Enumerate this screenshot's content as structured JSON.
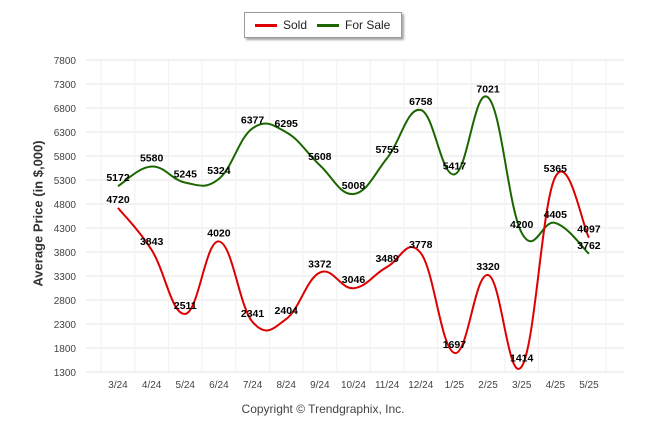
{
  "chart_data": {
    "type": "line",
    "categories": [
      "3/24",
      "4/24",
      "5/24",
      "6/24",
      "7/24",
      "8/24",
      "9/24",
      "10/24",
      "11/24",
      "12/24",
      "1/25",
      "2/25",
      "3/25",
      "4/25",
      "5/25"
    ],
    "series": [
      {
        "name": "Sold",
        "color": "#dd0000",
        "values": [
          4720,
          3843,
          2511,
          4020,
          2341,
          2404,
          3372,
          3046,
          3489,
          3778,
          1697,
          3320,
          1414,
          5365,
          4097
        ]
      },
      {
        "name": "For Sale",
        "color": "#1a6600",
        "values": [
          5172,
          5580,
          5245,
          5324,
          6377,
          6295,
          5608,
          5008,
          5755,
          6758,
          5417,
          7021,
          4200,
          4405,
          3762
        ]
      }
    ],
    "ylabel": "Average Price (in $,000)",
    "xlabel": "",
    "ylim": [
      1300,
      7800
    ],
    "yticks": [
      1300,
      1800,
      2300,
      2800,
      3300,
      3800,
      4300,
      4800,
      5300,
      5800,
      6300,
      6800,
      7300,
      7800
    ],
    "grid": true,
    "legend_position": "top-center"
  },
  "footer": {
    "copyright": "Copyright © Trendgraphix, Inc."
  }
}
